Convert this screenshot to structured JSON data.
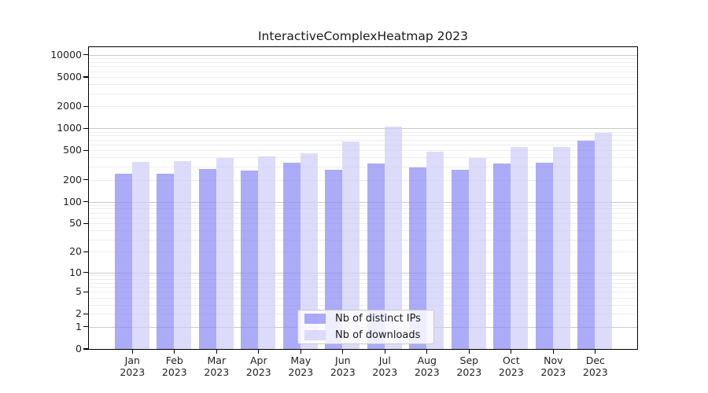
{
  "chart_data": {
    "type": "bar",
    "title": "InteractiveComplexHeatmap 2023",
    "categories": [
      "Jan 2023",
      "Feb 2023",
      "Mar 2023",
      "Apr 2023",
      "May 2023",
      "Jun 2023",
      "Jul 2023",
      "Aug 2023",
      "Sep 2023",
      "Oct 2023",
      "Nov 2023",
      "Dec 2023"
    ],
    "series": [
      {
        "name": "Nb of distinct IPs",
        "color": "rgba(135,135,245,0.7)",
        "values": [
          242,
          243,
          280,
          269,
          344,
          273,
          330,
          292,
          276,
          336,
          344,
          682
        ]
      },
      {
        "name": "Nb of downloads",
        "color": "rgba(205,205,248,0.7)",
        "values": [
          345,
          361,
          390,
          412,
          458,
          668,
          1056,
          485,
          396,
          563,
          551,
          864
        ]
      }
    ],
    "yscale": "log1p",
    "yticks": [
      0,
      1,
      2,
      5,
      10,
      20,
      50,
      100,
      200,
      500,
      1000,
      2000,
      5000,
      10000
    ],
    "ylim": [
      0,
      12700
    ],
    "xlabel": "",
    "ylabel": "",
    "grid": {
      "major_at": [
        1,
        10,
        100,
        1000,
        10000
      ],
      "minor_rule": "mantissas 2-9 of each decade",
      "major_color": "#c9c9c9",
      "minor_color": "#ededed"
    },
    "legend": {
      "position": "lower center inside"
    },
    "axis_color": "#000000",
    "text_color": "#1f1f1f",
    "background": "#ffffff"
  }
}
